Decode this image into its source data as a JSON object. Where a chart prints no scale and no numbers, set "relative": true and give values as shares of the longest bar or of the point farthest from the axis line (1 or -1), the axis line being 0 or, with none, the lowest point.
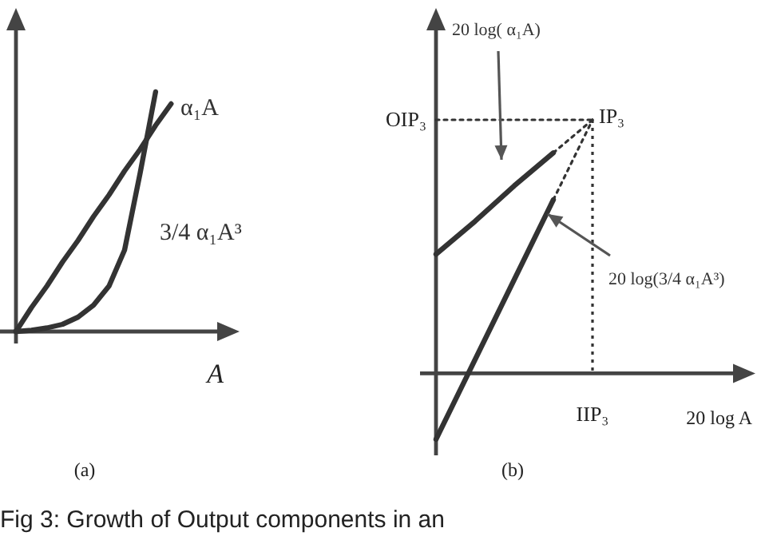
{
  "chart_data": [
    {
      "type": "line",
      "title": "(a)",
      "xlabel": "A",
      "relative": true,
      "color": "#333333",
      "categories": [
        null,
        null,
        null,
        null,
        null,
        null,
        null,
        null,
        null,
        null,
        null,
        null,
        null,
        null,
        null
      ],
      "series": [
        {
          "name": "α₁A",
          "values": [
            0,
            0.1,
            0.19,
            0.29,
            0.38,
            0.48,
            0.57,
            0.67,
            0.76,
            0.86,
            0.95,
            null,
            null,
            null,
            null
          ]
        },
        {
          "name": "3/4 α₁A³",
          "values": [
            0,
            0.005,
            0.015,
            0.03,
            0.06,
            0.11,
            0.19,
            0.34,
            0.66,
            1,
            null,
            null,
            null,
            null,
            null
          ]
        }
      ],
      "annotations": [
        "Fig 3: Growth of Output components in an"
      ]
    },
    {
      "type": "line",
      "title": "(b)",
      "xlabel": "20 log A",
      "relative": true,
      "color": "#333333",
      "categories": [
        null,
        null,
        null,
        null,
        null,
        null,
        null,
        null,
        null
      ],
      "series": [
        {
          "name": "20 log( α₁A)",
          "values": [
            0.47,
            0.6,
            0.74,
            0.87,
            null,
            null,
            null,
            null,
            null
          ]
        },
        {
          "values": [
            null,
            null,
            null,
            0.87,
            1,
            null,
            null,
            null,
            null
          ],
          "line_style": "dotted"
        },
        {
          "name": "20 log(3/4 α₁A³)",
          "values": [
            -0.26,
            0.055,
            0.37,
            0.685,
            null,
            null,
            null,
            null,
            null
          ]
        },
        {
          "values": [
            null,
            null,
            null,
            0.685,
            1,
            null,
            null,
            null,
            null
          ],
          "line_style": "dotted"
        },
        {
          "values": [
            1,
            1,
            1,
            1,
            1,
            null,
            null,
            null,
            null
          ],
          "line_style": "dotted"
        }
      ],
      "annotations": [
        "OIP₃",
        "IP₃",
        "IIP₃"
      ]
    }
  ]
}
